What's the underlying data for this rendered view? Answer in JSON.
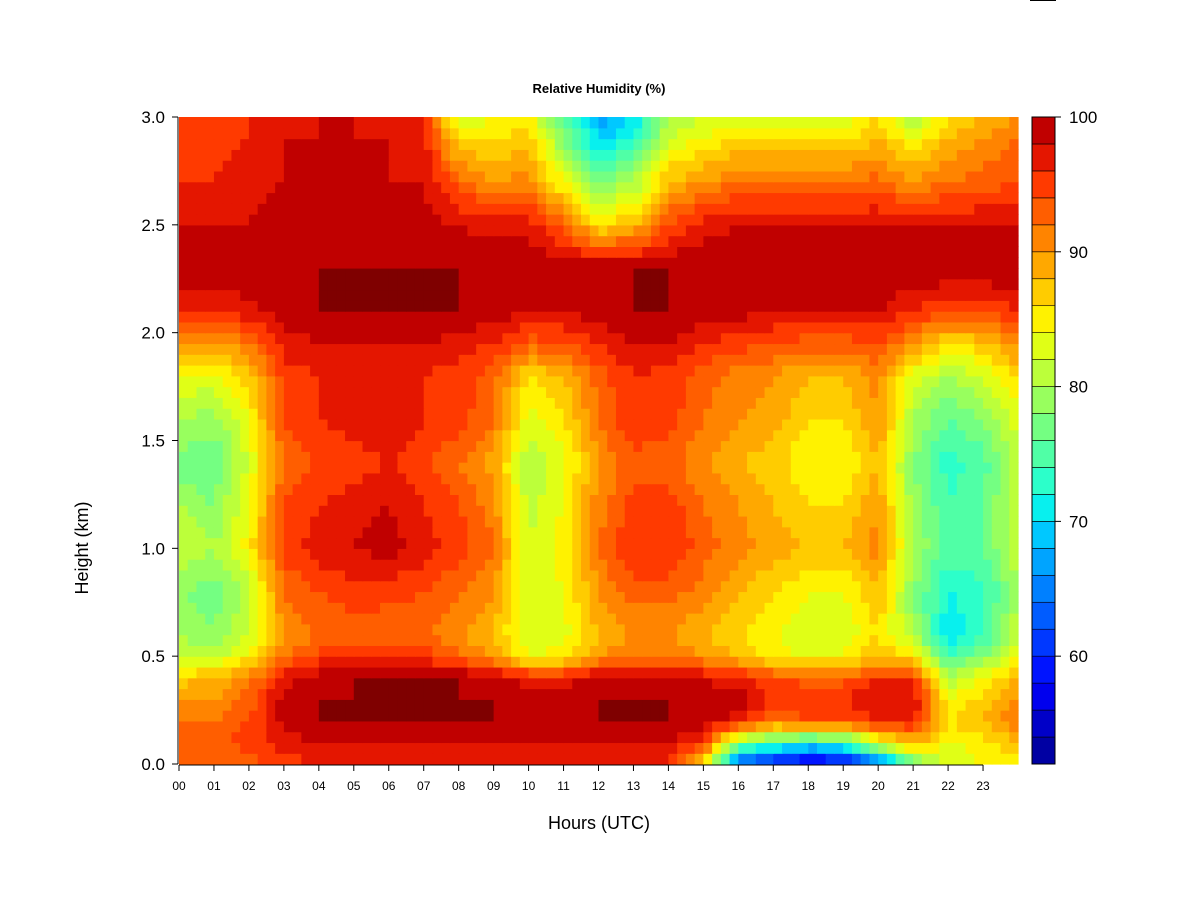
{
  "chart_data": {
    "type": "heatmap",
    "title": "Relative Humidity (%)",
    "xlabel": "Hours (UTC)",
    "ylabel": "Height (km)",
    "x_ticks": [
      "00",
      "01",
      "02",
      "03",
      "04",
      "05",
      "06",
      "07",
      "08",
      "09",
      "10",
      "11",
      "12",
      "13",
      "14",
      "15",
      "16",
      "17",
      "18",
      "19",
      "20",
      "21",
      "22",
      "23"
    ],
    "y_ticks": [
      "0.0",
      "0.5",
      "1.0",
      "1.5",
      "2.0",
      "2.5",
      "3.0"
    ],
    "xlim": [
      0,
      24
    ],
    "ylim": [
      0,
      3.0
    ],
    "colorbar": {
      "range": [
        52,
        100
      ],
      "ticks": [
        "60",
        "70",
        "80",
        "90",
        "100"
      ],
      "levels": [
        52,
        54,
        56,
        58,
        60,
        62,
        64,
        66,
        68,
        70,
        72,
        74,
        76,
        78,
        80,
        82,
        84,
        86,
        88,
        90,
        92,
        94,
        96,
        98,
        100
      ],
      "colors": [
        "#00007f",
        "#0000a3",
        "#0000c8",
        "#0000ee",
        "#0014ff",
        "#0038ff",
        "#005cff",
        "#0080ff",
        "#00a4ff",
        "#00c8ff",
        "#08f0ee",
        "#2cffca",
        "#50ffa6",
        "#74ff82",
        "#98ff5e",
        "#bcff3a",
        "#e0ff16",
        "#fff200",
        "#ffcc00",
        "#ffa800",
        "#ff8400",
        "#ff5e00",
        "#ff3a00",
        "#e41600",
        "#c00000",
        "#7f0000"
      ]
    },
    "height_levels_km": [
      0.0,
      0.1,
      0.2,
      0.3,
      0.4,
      0.5,
      0.6,
      0.8,
      1.0,
      1.2,
      1.4,
      1.6,
      1.8,
      1.95,
      2.1,
      2.3,
      2.5,
      2.7,
      2.9,
      3.0
    ],
    "time_hours": [
      0,
      1,
      2,
      3,
      4,
      5,
      6,
      7,
      8,
      9,
      10,
      11,
      12,
      13,
      14,
      15,
      16,
      17,
      18,
      19,
      20,
      21,
      22,
      23,
      24
    ],
    "values": [
      [
        92,
        92,
        93,
        95,
        96,
        96,
        96,
        96,
        96,
        96,
        96,
        96,
        96,
        96,
        96,
        86,
        62,
        58,
        55,
        56,
        62,
        76,
        82,
        84,
        84
      ],
      [
        92,
        93,
        95,
        97,
        98,
        98,
        98,
        98,
        98,
        98,
        98,
        98,
        98,
        98,
        98,
        95,
        78,
        75,
        72,
        74,
        82,
        88,
        84,
        85,
        88
      ],
      [
        92,
        92,
        94,
        99,
        100,
        100,
        100,
        100,
        100,
        100,
        99,
        99,
        100,
        100,
        100,
        99,
        97,
        92,
        94,
        94,
        96,
        97,
        86,
        88,
        92
      ],
      [
        90,
        90,
        93,
        99,
        100,
        100,
        100,
        100,
        100,
        100,
        99,
        99,
        100,
        100,
        100,
        99,
        99,
        96,
        96,
        96,
        98,
        98,
        84,
        87,
        90
      ],
      [
        87,
        88,
        91,
        97,
        99,
        100,
        100,
        100,
        100,
        99,
        97,
        97,
        99,
        100,
        99,
        98,
        97,
        94,
        93,
        93,
        96,
        96,
        80,
        84,
        88
      ],
      [
        82,
        81,
        85,
        92,
        95,
        95,
        95,
        95,
        93,
        90,
        84,
        85,
        90,
        92,
        92,
        90,
        88,
        85,
        84,
        84,
        88,
        86,
        74,
        78,
        84
      ],
      [
        80,
        78,
        82,
        90,
        92,
        93,
        92,
        92,
        90,
        88,
        82,
        83,
        88,
        90,
        90,
        88,
        86,
        84,
        82,
        82,
        86,
        80,
        70,
        74,
        82
      ],
      [
        78,
        77,
        81,
        92,
        94,
        95,
        95,
        94,
        92,
        90,
        82,
        84,
        90,
        93,
        93,
        91,
        88,
        86,
        84,
        84,
        88,
        78,
        72,
        73,
        80
      ],
      [
        82,
        80,
        85,
        95,
        97,
        98,
        99,
        97,
        95,
        92,
        82,
        85,
        92,
        96,
        96,
        93,
        91,
        89,
        88,
        88,
        91,
        80,
        75,
        76,
        82
      ],
      [
        80,
        78,
        84,
        94,
        96,
        97,
        98,
        96,
        94,
        91,
        81,
        84,
        91,
        95,
        95,
        92,
        90,
        88,
        86,
        86,
        90,
        79,
        74,
        76,
        82
      ],
      [
        77,
        76,
        82,
        92,
        94,
        95,
        96,
        94,
        92,
        89,
        80,
        83,
        90,
        93,
        93,
        90,
        88,
        87,
        84,
        84,
        88,
        78,
        73,
        75,
        81
      ],
      [
        80,
        79,
        84,
        94,
        96,
        97,
        98,
        96,
        95,
        92,
        83,
        86,
        92,
        96,
        95,
        92,
        90,
        89,
        86,
        86,
        90,
        80,
        76,
        78,
        83
      ],
      [
        84,
        83,
        87,
        95,
        96,
        97,
        97,
        96,
        95,
        93,
        86,
        88,
        93,
        96,
        95,
        93,
        91,
        90,
        88,
        88,
        91,
        83,
        80,
        82,
        86
      ],
      [
        90,
        89,
        92,
        97,
        98,
        98,
        98,
        98,
        97,
        96,
        93,
        94,
        96,
        98,
        98,
        96,
        95,
        94,
        93,
        93,
        94,
        90,
        86,
        87,
        91
      ],
      [
        96,
        96,
        97,
        99,
        100,
        100,
        100,
        100,
        100,
        99,
        98,
        98,
        99,
        100,
        100,
        99,
        99,
        98,
        98,
        98,
        98,
        96,
        94,
        94,
        96
      ],
      [
        100,
        100,
        100,
        100,
        100,
        100,
        100,
        100,
        100,
        100,
        100,
        100,
        100,
        100,
        100,
        100,
        100,
        100,
        100,
        100,
        100,
        100,
        100,
        100,
        100
      ],
      [
        98,
        98,
        98,
        99,
        99,
        99,
        99,
        99,
        98,
        97,
        97,
        93,
        86,
        88,
        94,
        97,
        98,
        98,
        98,
        98,
        98,
        98,
        98,
        98,
        98
      ],
      [
        96,
        96,
        97,
        98,
        98,
        98,
        98,
        98,
        93,
        90,
        91,
        84,
        78,
        80,
        88,
        90,
        92,
        92,
        92,
        92,
        93,
        90,
        92,
        93,
        94
      ],
      [
        95,
        95,
        96,
        98,
        98,
        98,
        98,
        97,
        86,
        86,
        87,
        78,
        70,
        72,
        82,
        84,
        86,
        86,
        86,
        86,
        88,
        84,
        88,
        90,
        92
      ],
      [
        94,
        94,
        96,
        97,
        98,
        98,
        97,
        96,
        82,
        84,
        85,
        75,
        66,
        70,
        80,
        82,
        82,
        83,
        82,
        82,
        86,
        80,
        86,
        88,
        90
      ]
    ]
  }
}
